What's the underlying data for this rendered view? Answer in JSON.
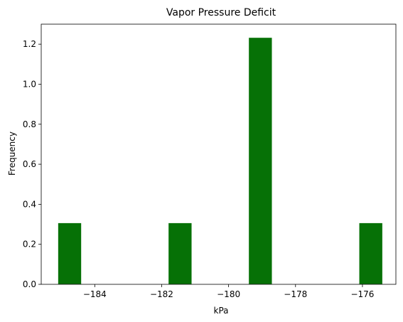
{
  "chart_data": {
    "type": "bar",
    "title": "Vapor Pressure Deficit",
    "xlabel": "kPa",
    "ylabel": "Frequency",
    "bars": [
      {
        "x0": -185.1,
        "x1": -184.4,
        "value": 0.307
      },
      {
        "x0": -181.8,
        "x1": -181.1,
        "value": 0.307
      },
      {
        "x0": -179.4,
        "x1": -178.7,
        "value": 1.233
      },
      {
        "x0": -176.1,
        "x1": -175.4,
        "value": 0.307
      }
    ],
    "xlim": [
      -185.6,
      -175.0
    ],
    "ylim": [
      0,
      1.3
    ],
    "xticks": [
      -184,
      -182,
      -180,
      -178,
      -176
    ],
    "xtick_labels": [
      "−184",
      "−182",
      "−180",
      "−178",
      "−176"
    ],
    "yticks": [
      0.0,
      0.2,
      0.4,
      0.6,
      0.8,
      1.0,
      1.2
    ],
    "ytick_labels": [
      "0.0",
      "0.2",
      "0.4",
      "0.6",
      "0.8",
      "1.0",
      "1.2"
    ],
    "bar_color": "#067106",
    "bar_edge_color": "#ffffff",
    "grid": false,
    "legend": "none"
  }
}
